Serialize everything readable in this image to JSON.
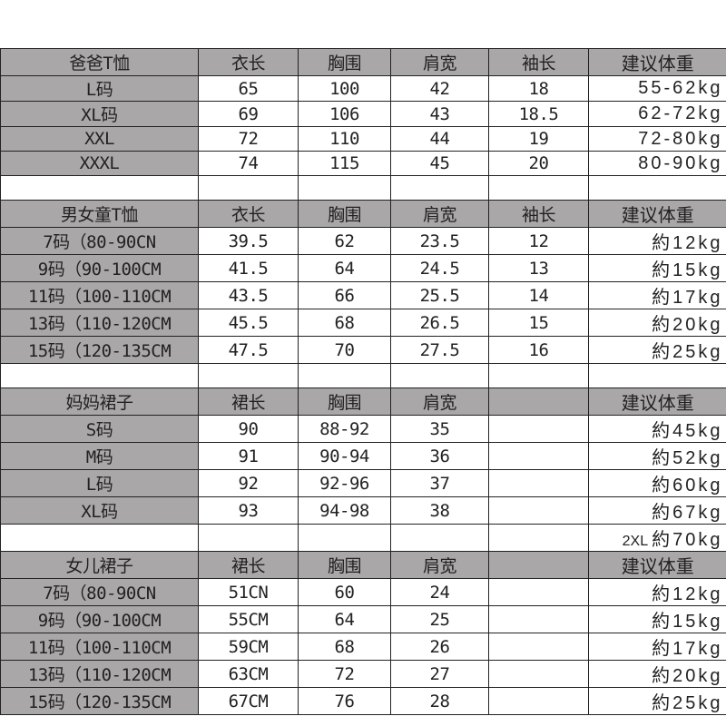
{
  "sections": [
    {
      "header": [
        "爸爸T恤",
        "衣长",
        "胸围",
        "肩宽",
        "袖长",
        "建议体重"
      ],
      "rows": [
        [
          "L码",
          "65",
          "100",
          "42",
          "18",
          "55-62kg"
        ],
        [
          "XL码",
          "69",
          "106",
          "43",
          "18.5",
          "62-72kg"
        ],
        [
          "XXL",
          "72",
          "110",
          "44",
          "19",
          "72-80kg"
        ],
        [
          "XXXL",
          "74",
          "115",
          "45",
          "20",
          "80-90kg"
        ]
      ],
      "blank": true
    },
    {
      "header": [
        "男女童T恤",
        "衣长",
        "胸围",
        "肩宽",
        "袖长",
        "建议体重"
      ],
      "rows": [
        [
          "7码（80-90CN",
          "39.5",
          "62",
          "23.5",
          "12",
          "約12kg"
        ],
        [
          "9码（90-100CM",
          "41.5",
          "64",
          "24.5",
          "13",
          "約15kg"
        ],
        [
          "11码（100-110CM",
          "43.5",
          "66",
          "25.5",
          "14",
          "約17kg"
        ],
        [
          "13码（110-120CM",
          "45.5",
          "68",
          "26.5",
          "15",
          "約20kg"
        ],
        [
          "15码（120-135CM",
          "47.5",
          "70",
          "27.5",
          "16",
          "約25kg"
        ]
      ],
      "blank": true
    },
    {
      "header": [
        "妈妈裙子",
        "裙长",
        "胸围",
        "肩宽",
        "",
        "建议体重"
      ],
      "rows": [
        [
          "S码",
          "90",
          "88-92",
          "35",
          "",
          "約45kg"
        ],
        [
          "M码",
          "91",
          "90-94",
          "36",
          "",
          "約52kg"
        ],
        [
          "L码",
          "92",
          "92-96",
          "37",
          "",
          "約60kg"
        ],
        [
          "XL码",
          "93",
          "94-98",
          "38",
          "",
          "約67kg"
        ]
      ],
      "blank": true,
      "blank_weight": {
        "prefix": "2XL",
        "value": "約70kg"
      }
    },
    {
      "header": [
        "女儿裙子",
        "裙长",
        "胸围",
        "肩宽",
        "",
        "建议体重"
      ],
      "rows": [
        [
          "7码（80-90CN",
          "51CN",
          "60",
          "24",
          "",
          "約12kg"
        ],
        [
          "9码（90-100CM",
          "55CM",
          "64",
          "25",
          "",
          "約15kg"
        ],
        [
          "11码（100-110CM",
          "59CM",
          "68",
          "26",
          "",
          "約17kg"
        ],
        [
          "13码（110-120CM",
          "63CM",
          "72",
          "27",
          "",
          "約20kg"
        ],
        [
          "15码（120-135CM",
          "67CM",
          "76",
          "28",
          "",
          "約25kg"
        ]
      ],
      "blank": false
    }
  ],
  "colors": {
    "header_fill": "#aaa7a8",
    "border": "#222222"
  }
}
